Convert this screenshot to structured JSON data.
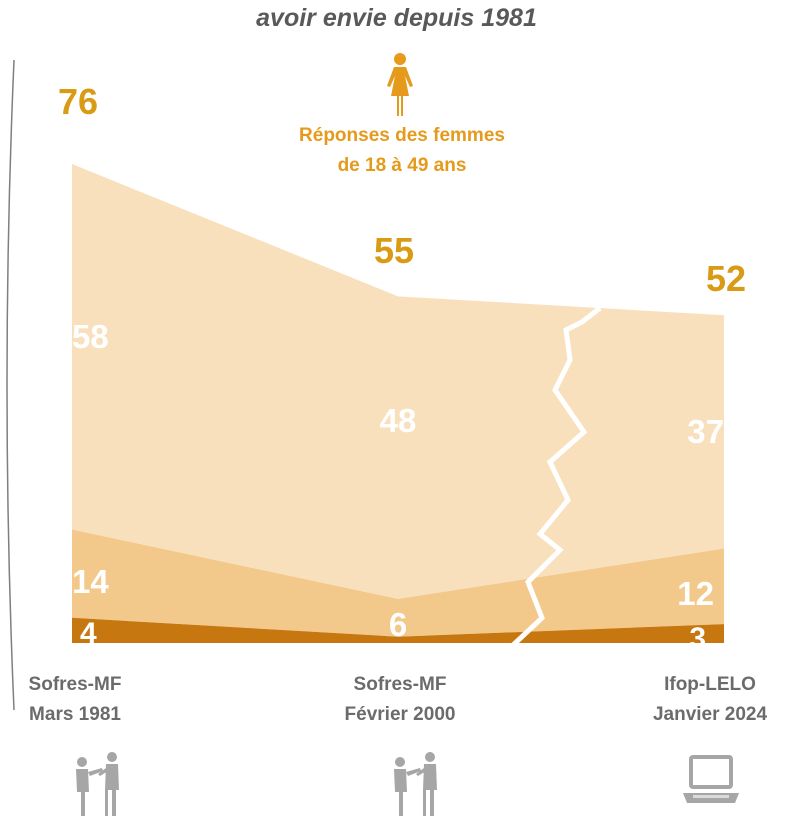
{
  "subtitle": "avoir envie depuis 1981",
  "women_label_line1": "Réponses des femmes",
  "women_label_line2": "de 18 à 49 ans",
  "colors": {
    "total": "#d99a14",
    "light_band": "#f9e0bd",
    "mid_band": "#f3c98b",
    "dark_band": "#c7770f",
    "band_value": "#ffffff",
    "source_text": "#6b6b6b",
    "icon": "#a6a6a6"
  },
  "sources": [
    {
      "line1": "Sofres-MF",
      "line2": "Mars 1981",
      "icon": "interview-people-icon"
    },
    {
      "line1": "Sofres-MF",
      "line2": "Février 2000",
      "icon": "interview-people-icon"
    },
    {
      "line1": "Ifop-LELO",
      "line2": "Janvier 2024",
      "icon": "laptop-icon"
    }
  ],
  "chart_data": {
    "type": "area",
    "categories": [
      "Sofres-MF Mars 1981",
      "Sofres-MF Février 2000",
      "Ifop-LELO Janvier 2024"
    ],
    "stacked": true,
    "totals": [
      76,
      55,
      52
    ],
    "series": [
      {
        "values": [
          4,
          1,
          3
        ]
      },
      {
        "values": [
          14,
          6,
          12
        ]
      },
      {
        "values": [
          58,
          48,
          37
        ]
      }
    ],
    "labels": {
      "totals": [
        "76",
        "55",
        "52"
      ],
      "bottom": [
        "4",
        "",
        "3"
      ],
      "middle": [
        "14",
        "6",
        "12"
      ],
      "top": [
        "58",
        "48",
        "37"
      ]
    },
    "break_between_points": [
      1,
      2
    ]
  }
}
